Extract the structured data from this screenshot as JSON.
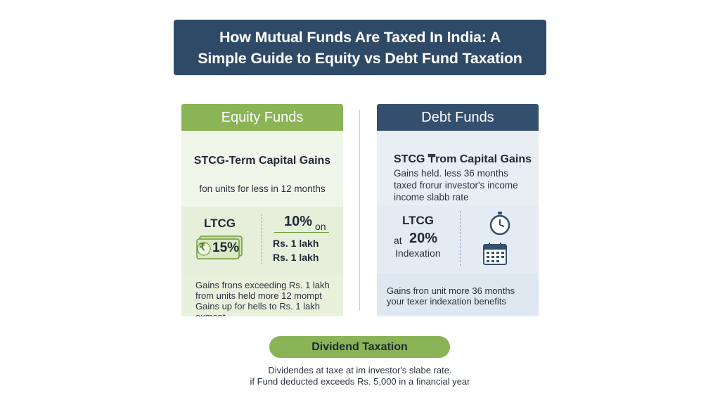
{
  "title": {
    "line1": "How Mutual Funds Are Taxed In India: A",
    "line2": "Simple Guide to Equity vs Debt Fund Taxation"
  },
  "equity": {
    "header": "Equity Funds",
    "stcg_heading": "STCG-Term Capital Gains",
    "stcg_sub": "fon units for less in 12 months",
    "ltcg_label": "LTCG",
    "rate_box": "15%",
    "rate_10": "10%",
    "on": "on",
    "rs1": "Rs. 1 lakh",
    "rs2": "Rs. 1 lakh",
    "bottom_lines": [
      "Gains frons exceeding Rs. 1 lakh",
      "from units held more 12 mompt",
      "Gains up for hells to Rs. 1 lakh",
      "exmept"
    ],
    "rupee_symbol": "₹",
    "colors": {
      "header": "#8ab455",
      "body": "#eef4e6"
    }
  },
  "debt": {
    "header": "Debt Funds",
    "stcg_heading": "STCG ₸rom Capital Gains",
    "stcg_lines": [
      "Gains held. less 36 months",
      "taxed frorur investor's income",
      "income slabb rate"
    ],
    "ltcg_label": "LTCG",
    "at": "at",
    "rate": "20%",
    "indexation": "Indexation",
    "bottom_lines": [
      "Gains fron unit more 36 months",
      "your texer indexation benefits"
    ],
    "icons": [
      "clock-icon",
      "calendar-icon"
    ],
    "colors": {
      "header": "#34506e",
      "body": "#e8eef6"
    }
  },
  "dividend": {
    "label": "Dividend Taxation",
    "line1": "Dividendes at taxe at im investor's slabe rate.",
    "line2": "if Fund deducted exceeds Rs. 5,000 in a financial year"
  }
}
